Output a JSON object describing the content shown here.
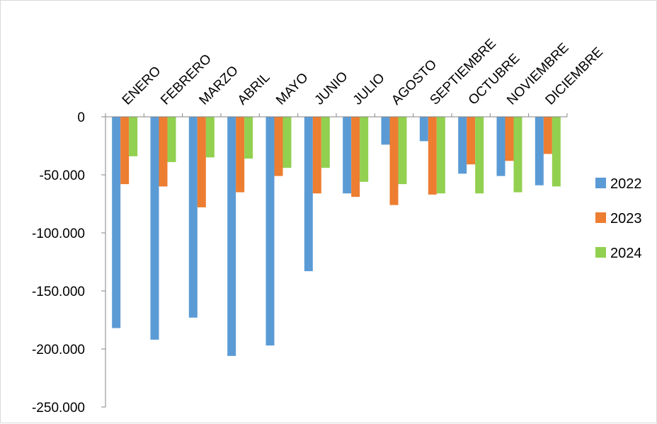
{
  "chart_data": {
    "type": "bar",
    "title": "",
    "xlabel": "",
    "ylabel": "",
    "ylim": [
      -250000,
      0
    ],
    "yticks": [
      0,
      -50000,
      -100000,
      -150000,
      -200000,
      -250000
    ],
    "ytick_labels": [
      "0",
      "-50.000",
      "-100.000",
      "-150.000",
      "-200.000",
      "-250.000"
    ],
    "categories": [
      "ENERO",
      "FEBRERO",
      "MARZO",
      "ABRIL",
      "MAYO",
      "JUNIO",
      "JULIO",
      "AGOSTO",
      "SEPTIEMBRE",
      "OCTUBRE",
      "NOVIEMBRE",
      "DICIEMBRE"
    ],
    "series": [
      {
        "name": "2022",
        "color": "#5b9bd5",
        "values": [
          -182000,
          -192000,
          -173000,
          -206000,
          -197000,
          -133000,
          -66000,
          -24000,
          -21000,
          -49000,
          -51000,
          -59000
        ]
      },
      {
        "name": "2023",
        "color": "#ed7d31",
        "values": [
          -58000,
          -60000,
          -78000,
          -65000,
          -51000,
          -66000,
          -69000,
          -76000,
          -67000,
          -41000,
          -38000,
          -32000
        ]
      },
      {
        "name": "2024",
        "color": "#92d050",
        "values": [
          -34000,
          -39000,
          -35000,
          -36000,
          -44000,
          -44000,
          -56000,
          -58000,
          -66000,
          -66000,
          -65000,
          -60000
        ]
      }
    ],
    "grid": false,
    "legend_position": "right"
  }
}
